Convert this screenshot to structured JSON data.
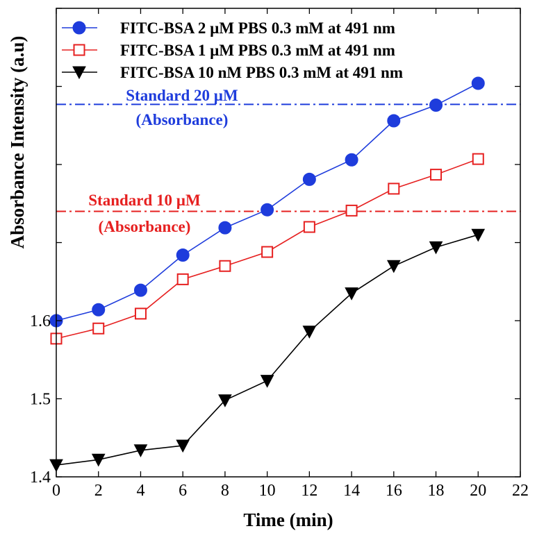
{
  "chart_data": {
    "type": "line",
    "title": "",
    "xlabel": "Time (min)",
    "ylabel": "Absorbance Intensity (a.u)",
    "xlim": [
      0,
      22
    ],
    "ylim": [
      1.4,
      2.0
    ],
    "xticks": [
      0,
      2,
      4,
      6,
      8,
      10,
      12,
      14,
      16,
      18,
      20,
      22
    ],
    "yticks": [
      1.4,
      1.5,
      1.6,
      1.7,
      1.8,
      1.9,
      2.0
    ],
    "ytick_labels": [
      "1.4",
      "1.5",
      "1.6",
      "",
      "",
      "",
      ""
    ],
    "legend_position": "top",
    "series": [
      {
        "name": "FITC-BSA 2 µM PBS 0.3 mM at 491 nm",
        "color": "#1e3cdc",
        "marker": "filled-circle",
        "x": [
          0,
          2,
          4,
          6,
          8,
          10,
          12,
          14,
          16,
          18,
          20
        ],
        "y": [
          1.6,
          1.614,
          1.639,
          1.684,
          1.719,
          1.742,
          1.781,
          1.806,
          1.856,
          1.876,
          1.904
        ]
      },
      {
        "name": "FITC-BSA 1 µM PBS 0.3 mM at 491 nm",
        "color": "#e62020",
        "marker": "open-square",
        "x": [
          0,
          2,
          4,
          6,
          8,
          10,
          12,
          14,
          16,
          18,
          20
        ],
        "y": [
          1.577,
          1.59,
          1.609,
          1.653,
          1.67,
          1.688,
          1.72,
          1.741,
          1.769,
          1.787,
          1.807
        ]
      },
      {
        "name": "FITC-BSA 10 nM PBS 0.3 mM at 491 nm",
        "color": "#000000",
        "marker": "filled-triangle-down",
        "x": [
          0,
          2,
          4,
          6,
          8,
          10,
          12,
          14,
          16,
          18,
          20
        ],
        "y": [
          1.415,
          1.422,
          1.434,
          1.44,
          1.498,
          1.523,
          1.586,
          1.635,
          1.67,
          1.694,
          1.71
        ]
      }
    ],
    "reference_lines": [
      {
        "label_line1": "Standard 20 µM",
        "label_line2": "(Absorbance)",
        "y": 1.877,
        "color": "#1e3cdc"
      },
      {
        "label_line1": "Standard 10 µM",
        "label_line2": "(Absorbance)",
        "y": 1.74,
        "color": "#e62020"
      }
    ]
  }
}
